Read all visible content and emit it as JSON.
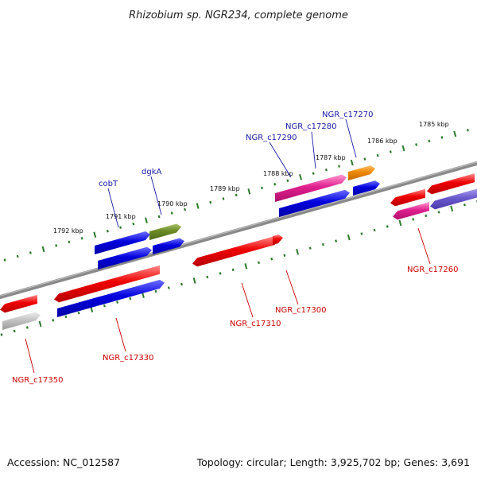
{
  "title": "Rhizobium sp. NGR234, complete genome",
  "footer": {
    "accession": "Accession: NC_012587",
    "summary": "Topology: circular; Length: 3,925,702 bp; Genes: 3,691"
  },
  "scale_labels": [
    "1785 kbp",
    "1786 kbp",
    "1787 kbp",
    "1788 kbp",
    "1789 kbp",
    "1790 kbp",
    "1791 kbp",
    "1792 kbp"
  ],
  "gene_labels_top": [
    "NGR_c17270",
    "NGR_c17280",
    "NGR_c17290",
    "dgkA",
    "cobT"
  ],
  "gene_labels_bottom": [
    "NGR_c17260",
    "NGR_c17300",
    "NGR_c17310",
    "NGR_c17330",
    "NGR_c17350"
  ],
  "colors": {
    "red": "#ee0000",
    "blue": "#0000dd",
    "magenta": "#e0208f",
    "green": "#6a8a25",
    "orange": "#ee8800",
    "purple": "#6a5acd",
    "grey": "#bbbbbb",
    "tick": "#2a7a2a",
    "genome_line": "#777777"
  }
}
